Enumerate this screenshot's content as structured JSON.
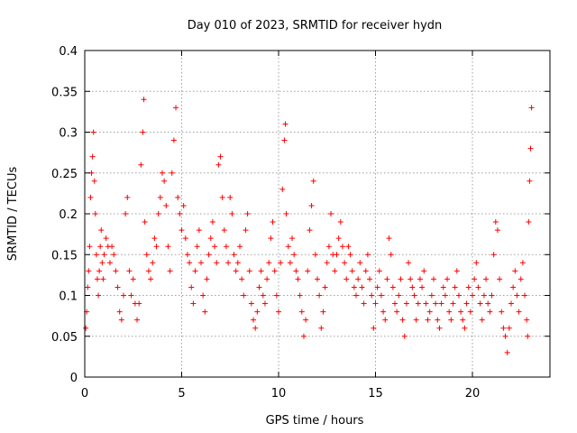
{
  "chart_data": {
    "type": "scatter",
    "title": "Day 010 of 2023, SRMTID for receiver hydn",
    "xlabel": "GPS time / hours",
    "ylabel": "SRMTID / TECUs",
    "xlim": [
      0,
      24
    ],
    "ylim": [
      0,
      0.4
    ],
    "xticks": [
      0,
      5,
      10,
      15,
      20
    ],
    "xtick_labels": [
      "0",
      "5",
      "10",
      "15",
      "20"
    ],
    "yticks": [
      0,
      0.05,
      0.1,
      0.15,
      0.2,
      0.25,
      0.3,
      0.35,
      0.4
    ],
    "ytick_labels": [
      "0",
      "0.05",
      "0.1",
      "0.15",
      "0.2",
      "0.25",
      "0.3",
      "0.35",
      "0.4"
    ],
    "grid": true,
    "marker": "+",
    "color": "#ff0000",
    "series": [
      {
        "name": "SRMTID",
        "points": [
          [
            0.05,
            0.06
          ],
          [
            0.1,
            0.08
          ],
          [
            0.15,
            0.11
          ],
          [
            0.2,
            0.13
          ],
          [
            0.25,
            0.16
          ],
          [
            0.3,
            0.22
          ],
          [
            0.35,
            0.25
          ],
          [
            0.4,
            0.27
          ],
          [
            0.45,
            0.3
          ],
          [
            0.5,
            0.24
          ],
          [
            0.55,
            0.2
          ],
          [
            0.6,
            0.15
          ],
          [
            0.65,
            0.12
          ],
          [
            0.7,
            0.1
          ],
          [
            0.75,
            0.13
          ],
          [
            0.8,
            0.16
          ],
          [
            0.85,
            0.18
          ],
          [
            0.9,
            0.14
          ],
          [
            0.95,
            0.12
          ],
          [
            1.0,
            0.15
          ],
          [
            1.1,
            0.17
          ],
          [
            1.2,
            0.16
          ],
          [
            1.3,
            0.14
          ],
          [
            1.4,
            0.16
          ],
          [
            1.5,
            0.15
          ],
          [
            1.6,
            0.13
          ],
          [
            1.7,
            0.11
          ],
          [
            1.8,
            0.08
          ],
          [
            1.9,
            0.07
          ],
          [
            2.0,
            0.1
          ],
          [
            2.1,
            0.2
          ],
          [
            2.2,
            0.22
          ],
          [
            2.3,
            0.13
          ],
          [
            2.4,
            0.1
          ],
          [
            2.5,
            0.12
          ],
          [
            2.6,
            0.09
          ],
          [
            2.7,
            0.07
          ],
          [
            2.8,
            0.09
          ],
          [
            2.9,
            0.26
          ],
          [
            3.0,
            0.3
          ],
          [
            3.05,
            0.34
          ],
          [
            3.1,
            0.19
          ],
          [
            3.2,
            0.15
          ],
          [
            3.3,
            0.13
          ],
          [
            3.4,
            0.12
          ],
          [
            3.5,
            0.14
          ],
          [
            3.6,
            0.17
          ],
          [
            3.7,
            0.16
          ],
          [
            3.8,
            0.2
          ],
          [
            3.9,
            0.22
          ],
          [
            4.0,
            0.25
          ],
          [
            4.1,
            0.24
          ],
          [
            4.2,
            0.21
          ],
          [
            4.3,
            0.16
          ],
          [
            4.4,
            0.13
          ],
          [
            4.5,
            0.25
          ],
          [
            4.6,
            0.29
          ],
          [
            4.7,
            0.33
          ],
          [
            4.8,
            0.22
          ],
          [
            4.9,
            0.2
          ],
          [
            5.0,
            0.18
          ],
          [
            5.1,
            0.21
          ],
          [
            5.2,
            0.17
          ],
          [
            5.3,
            0.15
          ],
          [
            5.4,
            0.14
          ],
          [
            5.5,
            0.11
          ],
          [
            5.6,
            0.09
          ],
          [
            5.7,
            0.13
          ],
          [
            5.8,
            0.16
          ],
          [
            5.9,
            0.18
          ],
          [
            6.0,
            0.14
          ],
          [
            6.1,
            0.1
          ],
          [
            6.2,
            0.08
          ],
          [
            6.3,
            0.12
          ],
          [
            6.4,
            0.15
          ],
          [
            6.5,
            0.17
          ],
          [
            6.6,
            0.19
          ],
          [
            6.7,
            0.16
          ],
          [
            6.8,
            0.14
          ],
          [
            6.9,
            0.26
          ],
          [
            7.0,
            0.27
          ],
          [
            7.1,
            0.22
          ],
          [
            7.2,
            0.18
          ],
          [
            7.3,
            0.16
          ],
          [
            7.4,
            0.14
          ],
          [
            7.5,
            0.22
          ],
          [
            7.6,
            0.2
          ],
          [
            7.7,
            0.15
          ],
          [
            7.8,
            0.13
          ],
          [
            7.9,
            0.14
          ],
          [
            8.0,
            0.16
          ],
          [
            8.1,
            0.12
          ],
          [
            8.2,
            0.1
          ],
          [
            8.3,
            0.18
          ],
          [
            8.4,
            0.2
          ],
          [
            8.5,
            0.13
          ],
          [
            8.6,
            0.09
          ],
          [
            8.7,
            0.07
          ],
          [
            8.8,
            0.06
          ],
          [
            8.9,
            0.08
          ],
          [
            9.0,
            0.11
          ],
          [
            9.1,
            0.13
          ],
          [
            9.2,
            0.1
          ],
          [
            9.3,
            0.09
          ],
          [
            9.4,
            0.12
          ],
          [
            9.5,
            0.14
          ],
          [
            9.6,
            0.17
          ],
          [
            9.7,
            0.19
          ],
          [
            9.8,
            0.13
          ],
          [
            9.9,
            0.1
          ],
          [
            10.0,
            0.08
          ],
          [
            10.1,
            0.14
          ],
          [
            10.2,
            0.23
          ],
          [
            10.3,
            0.29
          ],
          [
            10.35,
            0.31
          ],
          [
            10.4,
            0.2
          ],
          [
            10.5,
            0.16
          ],
          [
            10.6,
            0.14
          ],
          [
            10.7,
            0.17
          ],
          [
            10.8,
            0.15
          ],
          [
            10.9,
            0.13
          ],
          [
            11.0,
            0.12
          ],
          [
            11.1,
            0.1
          ],
          [
            11.2,
            0.08
          ],
          [
            11.3,
            0.05
          ],
          [
            11.4,
            0.07
          ],
          [
            11.5,
            0.13
          ],
          [
            11.6,
            0.18
          ],
          [
            11.7,
            0.21
          ],
          [
            11.8,
            0.24
          ],
          [
            11.9,
            0.15
          ],
          [
            12.0,
            0.12
          ],
          [
            12.1,
            0.1
          ],
          [
            12.2,
            0.06
          ],
          [
            12.3,
            0.08
          ],
          [
            12.4,
            0.11
          ],
          [
            12.5,
            0.14
          ],
          [
            12.6,
            0.16
          ],
          [
            12.7,
            0.2
          ],
          [
            12.8,
            0.15
          ],
          [
            12.9,
            0.13
          ],
          [
            13.0,
            0.15
          ],
          [
            13.1,
            0.17
          ],
          [
            13.2,
            0.19
          ],
          [
            13.3,
            0.16
          ],
          [
            13.4,
            0.14
          ],
          [
            13.5,
            0.12
          ],
          [
            13.6,
            0.16
          ],
          [
            13.7,
            0.15
          ],
          [
            13.8,
            0.13
          ],
          [
            13.9,
            0.11
          ],
          [
            14.0,
            0.1
          ],
          [
            14.1,
            0.12
          ],
          [
            14.2,
            0.14
          ],
          [
            14.3,
            0.11
          ],
          [
            14.4,
            0.09
          ],
          [
            14.5,
            0.13
          ],
          [
            14.6,
            0.15
          ],
          [
            14.7,
            0.12
          ],
          [
            14.8,
            0.1
          ],
          [
            14.9,
            0.06
          ],
          [
            15.0,
            0.09
          ],
          [
            15.1,
            0.11
          ],
          [
            15.2,
            0.13
          ],
          [
            15.3,
            0.1
          ],
          [
            15.4,
            0.08
          ],
          [
            15.5,
            0.07
          ],
          [
            15.6,
            0.12
          ],
          [
            15.7,
            0.17
          ],
          [
            15.8,
            0.15
          ],
          [
            15.9,
            0.11
          ],
          [
            16.0,
            0.09
          ],
          [
            16.1,
            0.08
          ],
          [
            16.2,
            0.1
          ],
          [
            16.3,
            0.12
          ],
          [
            16.4,
            0.07
          ],
          [
            16.5,
            0.05
          ],
          [
            16.6,
            0.09
          ],
          [
            16.7,
            0.14
          ],
          [
            16.8,
            0.12
          ],
          [
            16.9,
            0.11
          ],
          [
            17.0,
            0.1
          ],
          [
            17.1,
            0.07
          ],
          [
            17.2,
            0.09
          ],
          [
            17.3,
            0.12
          ],
          [
            17.4,
            0.11
          ],
          [
            17.5,
            0.13
          ],
          [
            17.6,
            0.09
          ],
          [
            17.7,
            0.07
          ],
          [
            17.8,
            0.08
          ],
          [
            17.9,
            0.1
          ],
          [
            18.0,
            0.12
          ],
          [
            18.1,
            0.09
          ],
          [
            18.2,
            0.07
          ],
          [
            18.3,
            0.06
          ],
          [
            18.4,
            0.09
          ],
          [
            18.5,
            0.11
          ],
          [
            18.6,
            0.1
          ],
          [
            18.7,
            0.12
          ],
          [
            18.8,
            0.08
          ],
          [
            18.9,
            0.07
          ],
          [
            19.0,
            0.09
          ],
          [
            19.1,
            0.11
          ],
          [
            19.2,
            0.13
          ],
          [
            19.3,
            0.1
          ],
          [
            19.4,
            0.08
          ],
          [
            19.5,
            0.07
          ],
          [
            19.6,
            0.06
          ],
          [
            19.7,
            0.09
          ],
          [
            19.8,
            0.11
          ],
          [
            19.9,
            0.08
          ],
          [
            20.0,
            0.1
          ],
          [
            20.1,
            0.12
          ],
          [
            20.2,
            0.14
          ],
          [
            20.3,
            0.11
          ],
          [
            20.4,
            0.09
          ],
          [
            20.5,
            0.07
          ],
          [
            20.6,
            0.1
          ],
          [
            20.7,
            0.12
          ],
          [
            20.8,
            0.09
          ],
          [
            20.9,
            0.08
          ],
          [
            21.0,
            0.1
          ],
          [
            21.1,
            0.15
          ],
          [
            21.2,
            0.19
          ],
          [
            21.3,
            0.18
          ],
          [
            21.4,
            0.12
          ],
          [
            21.5,
            0.08
          ],
          [
            21.6,
            0.06
          ],
          [
            21.7,
            0.05
          ],
          [
            21.8,
            0.03
          ],
          [
            21.9,
            0.06
          ],
          [
            22.0,
            0.09
          ],
          [
            22.1,
            0.11
          ],
          [
            22.2,
            0.13
          ],
          [
            22.3,
            0.1
          ],
          [
            22.4,
            0.08
          ],
          [
            22.5,
            0.12
          ],
          [
            22.6,
            0.14
          ],
          [
            22.7,
            0.1
          ],
          [
            22.8,
            0.07
          ],
          [
            22.85,
            0.05
          ],
          [
            22.9,
            0.19
          ],
          [
            22.95,
            0.24
          ],
          [
            23.0,
            0.28
          ],
          [
            23.05,
            0.33
          ]
        ]
      }
    ]
  }
}
